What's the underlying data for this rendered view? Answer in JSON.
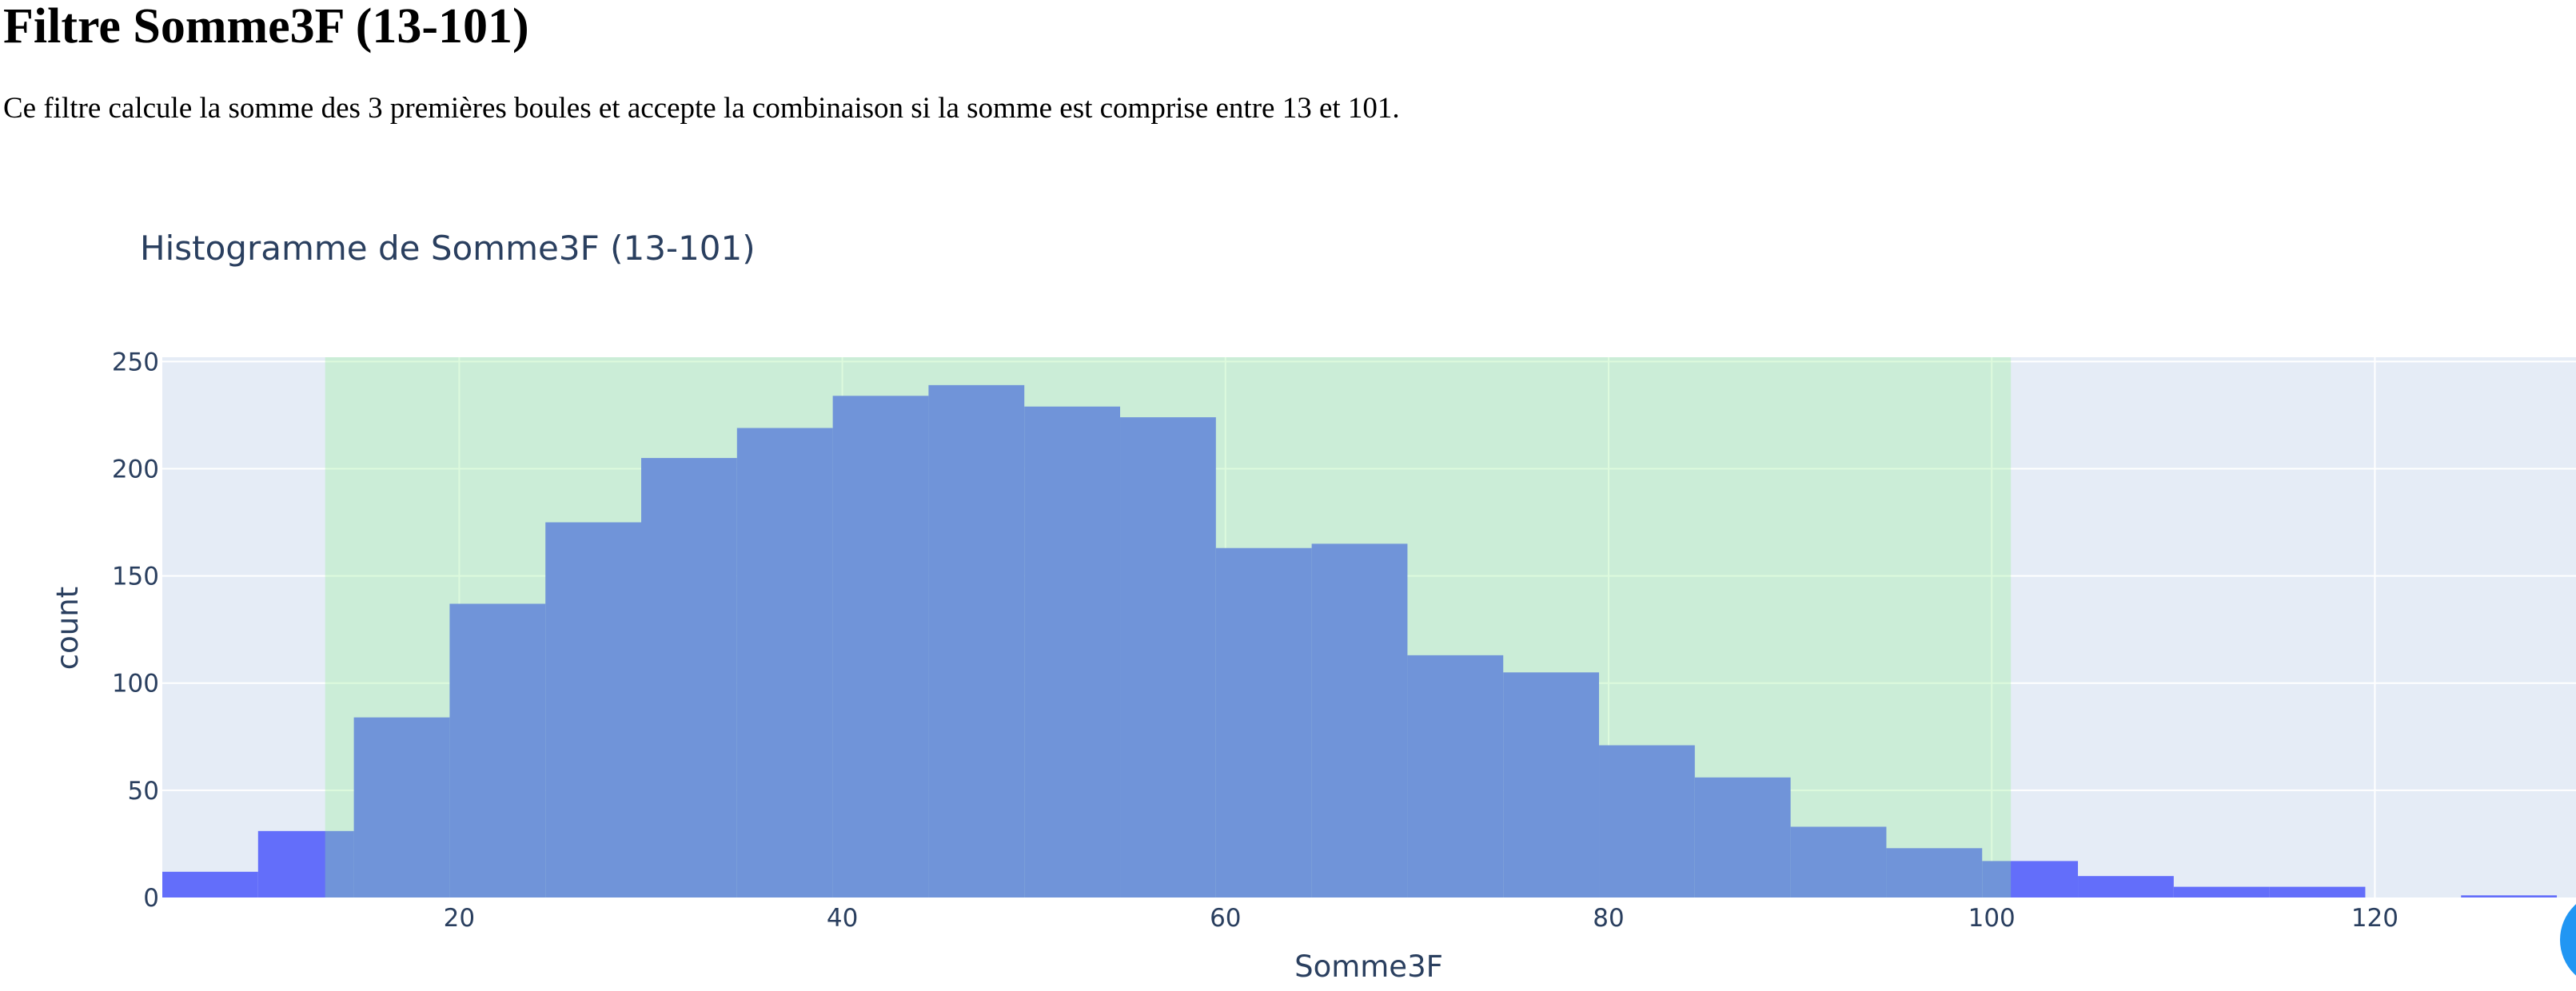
{
  "page": {
    "title": "Filtre Somme3F (13-101)",
    "description": "Ce filtre calcule la somme des 3 premières boules et accepte la combinaison si la somme est comprise entre 13 et 101."
  },
  "colors": {
    "plot_background": "#e5ecf6",
    "grid": "#ffffff",
    "bars": "#636efa",
    "accepted_range_fill": "#90ee90",
    "text": "#2a3f5f",
    "fab": "#2196f3"
  },
  "chart_data": {
    "type": "bar",
    "title": "Histogramme de Somme3F (13-101)",
    "xlabel": "Somme3F",
    "ylabel": "count",
    "xlim": [
      4.5,
      130.5
    ],
    "ylim": [
      0,
      252
    ],
    "x_ticks": [
      20,
      40,
      60,
      80,
      100,
      120
    ],
    "x_tick_labels": [
      "20",
      "40",
      "60",
      "80",
      "100",
      "120"
    ],
    "y_ticks": [
      0,
      50,
      100,
      150,
      200,
      250
    ],
    "y_tick_labels": [
      "0",
      "50",
      "100",
      "150",
      "200",
      "250"
    ],
    "grid": true,
    "bin_size": 5,
    "bins": [
      {
        "start": 4.5,
        "end": 9.5,
        "count": 12
      },
      {
        "start": 9.5,
        "end": 14.5,
        "count": 31
      },
      {
        "start": 14.5,
        "end": 19.5,
        "count": 84
      },
      {
        "start": 19.5,
        "end": 24.5,
        "count": 137
      },
      {
        "start": 24.5,
        "end": 29.5,
        "count": 175
      },
      {
        "start": 29.5,
        "end": 34.5,
        "count": 205
      },
      {
        "start": 34.5,
        "end": 39.5,
        "count": 219
      },
      {
        "start": 39.5,
        "end": 44.5,
        "count": 234
      },
      {
        "start": 44.5,
        "end": 49.5,
        "count": 239
      },
      {
        "start": 49.5,
        "end": 54.5,
        "count": 229
      },
      {
        "start": 54.5,
        "end": 59.5,
        "count": 224
      },
      {
        "start": 59.5,
        "end": 64.5,
        "count": 163
      },
      {
        "start": 64.5,
        "end": 69.5,
        "count": 165
      },
      {
        "start": 69.5,
        "end": 74.5,
        "count": 113
      },
      {
        "start": 74.5,
        "end": 79.5,
        "count": 105
      },
      {
        "start": 79.5,
        "end": 84.5,
        "count": 71
      },
      {
        "start": 84.5,
        "end": 89.5,
        "count": 56
      },
      {
        "start": 89.5,
        "end": 94.5,
        "count": 33
      },
      {
        "start": 94.5,
        "end": 99.5,
        "count": 23
      },
      {
        "start": 99.5,
        "end": 104.5,
        "count": 17
      },
      {
        "start": 104.5,
        "end": 109.5,
        "count": 10
      },
      {
        "start": 109.5,
        "end": 114.5,
        "count": 5
      },
      {
        "start": 114.5,
        "end": 119.5,
        "count": 5
      },
      {
        "start": 119.5,
        "end": 124.5,
        "count": 0
      },
      {
        "start": 124.5,
        "end": 129.5,
        "count": 1
      }
    ],
    "accepted_range": {
      "min": 13,
      "max": 101
    }
  }
}
